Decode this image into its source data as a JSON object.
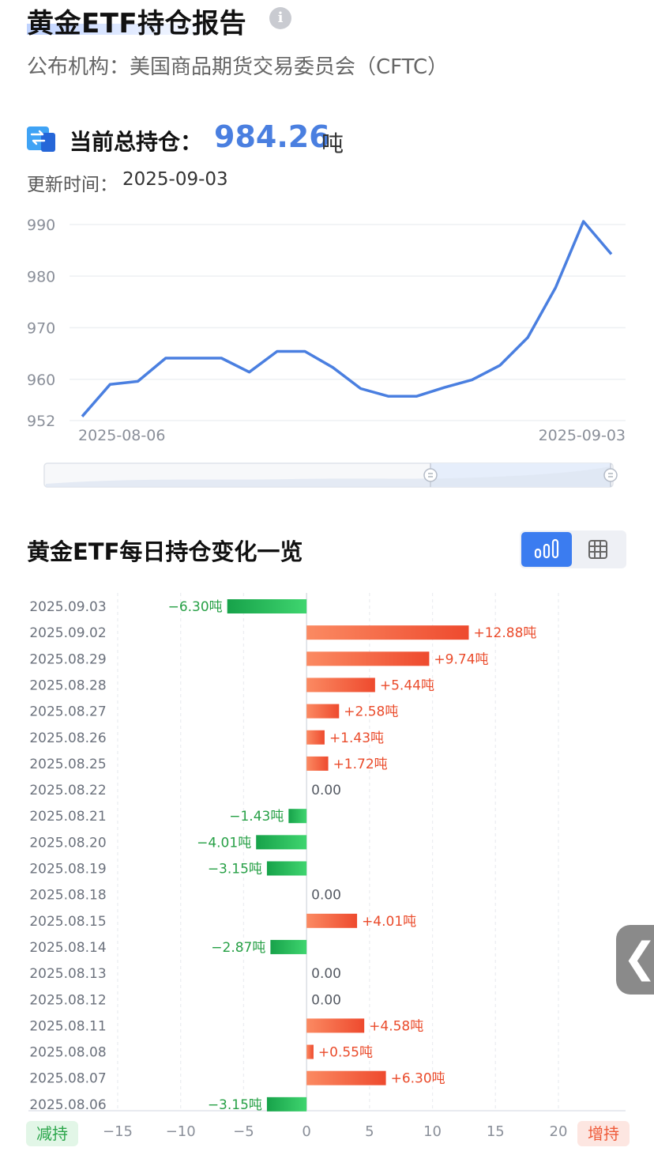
{
  "header": {
    "title": "黄金ETF持仓报告",
    "info_icon": "info-icon",
    "publisher": "公布机构：美国商品期货交易委员会（CFTC）"
  },
  "summary": {
    "icon": "transfer-icon",
    "label": "当前总持仓：",
    "value": "984.26",
    "unit": "吨",
    "update_label": "更新时间：",
    "update_value": "2025-09-03"
  },
  "section2": {
    "title": "黄金ETF每日持仓变化一览",
    "view_chart_icon": "bar-chart-icon",
    "view_table_icon": "table-icon",
    "legend_decrease": "减持",
    "legend_increase": "增持",
    "side_handle_icon": "chevron-left-icon"
  },
  "colors": {
    "accent": "#4a7fe0",
    "increase": "#ef5b3a",
    "decrease": "#2aa54a"
  },
  "chart_data": [
    {
      "type": "line",
      "x_labels": [
        "2025-08-06",
        "2025-09-03"
      ],
      "y_ticks": [
        952,
        960,
        970,
        980,
        990
      ],
      "ylim": [
        952,
        990
      ],
      "series": [
        {
          "values": [
            952.8,
            959.0,
            959.6,
            964.1,
            964.1,
            964.1,
            961.4,
            965.4,
            965.4,
            962.3,
            958.2,
            956.7,
            956.7,
            958.4,
            959.9,
            962.7,
            968.1,
            977.8,
            990.6,
            984.26
          ]
        }
      ],
      "grid": true,
      "range_slider": true
    },
    {
      "type": "bar",
      "orientation": "horizontal",
      "categories": [
        "2025.09.03",
        "2025.09.02",
        "2025.08.29",
        "2025.08.28",
        "2025.08.27",
        "2025.08.26",
        "2025.08.25",
        "2025.08.22",
        "2025.08.21",
        "2025.08.20",
        "2025.08.19",
        "2025.08.18",
        "2025.08.15",
        "2025.08.14",
        "2025.08.13",
        "2025.08.12",
        "2025.08.11",
        "2025.08.08",
        "2025.08.07",
        "2025.08.06"
      ],
      "values": [
        -6.3,
        12.88,
        9.74,
        5.44,
        2.58,
        1.43,
        1.72,
        0.0,
        -1.43,
        -4.01,
        -3.15,
        0.0,
        4.01,
        -2.87,
        0.0,
        0.0,
        4.58,
        0.55,
        6.3,
        -3.15
      ],
      "labels": [
        "−6.30吨",
        "+12.88吨",
        "+9.74吨",
        "+5.44吨",
        "+2.58吨",
        "+1.43吨",
        "+1.72吨",
        "0.00",
        "−1.43吨",
        "−4.01吨",
        "−3.15吨",
        "0.00",
        "+4.01吨",
        "−2.87吨",
        "0.00",
        "0.00",
        "+4.58吨",
        "+0.55吨",
        "+6.30吨",
        "−3.15吨"
      ],
      "x_ticks": [
        "−15",
        "−10",
        "−5",
        "0",
        "5",
        "10",
        "15",
        "20"
      ],
      "xlim": [
        -15,
        20
      ]
    }
  ]
}
